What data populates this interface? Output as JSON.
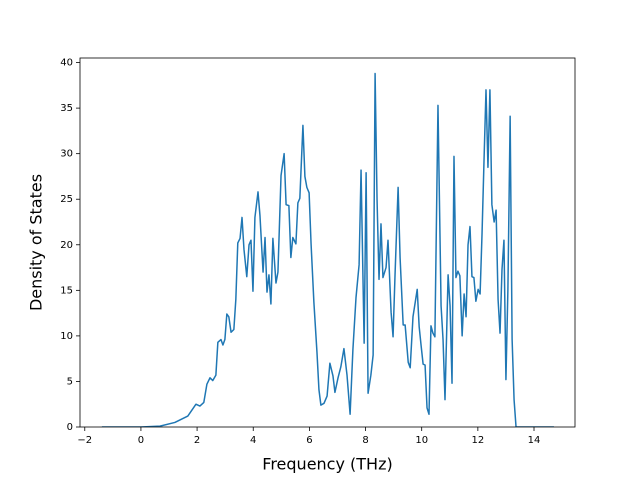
{
  "chart_data": {
    "type": "line",
    "xlabel": "Frequency (THz)",
    "ylabel": "Density of States",
    "color": "#1f77b4",
    "x": [
      -1.39,
      0,
      0.68,
      1.21,
      1.67,
      1.96,
      2.1,
      2.24,
      2.35,
      2.46,
      2.56,
      2.67,
      2.74,
      2.85,
      2.92,
      2.99,
      3.06,
      3.13,
      3.21,
      3.31,
      3.38,
      3.45,
      3.53,
      3.6,
      3.67,
      3.77,
      3.85,
      3.92,
      3.99,
      4.06,
      4.17,
      4.24,
      4.35,
      4.42,
      4.49,
      4.56,
      4.63,
      4.7,
      4.81,
      4.88,
      4.99,
      5.1,
      5.17,
      5.27,
      5.34,
      5.41,
      5.52,
      5.59,
      5.66,
      5.77,
      5.84,
      5.91,
      5.99,
      6.06,
      6.16,
      6.27,
      6.34,
      6.41,
      6.52,
      6.63,
      6.73,
      6.84,
      6.91,
      7.02,
      7.12,
      7.23,
      7.34,
      7.45,
      7.55,
      7.66,
      7.77,
      7.84,
      7.95,
      8.02,
      8.09,
      8.19,
      8.27,
      8.34,
      8.41,
      8.48,
      8.55,
      8.62,
      8.73,
      8.8,
      8.91,
      8.98,
      9.05,
      9.16,
      9.23,
      9.34,
      9.41,
      9.52,
      9.59,
      9.69,
      9.84,
      9.91,
      9.98,
      10.05,
      10.12,
      10.19,
      10.26,
      10.33,
      10.4,
      10.47,
      10.58,
      10.69,
      10.76,
      10.83,
      10.94,
      11.01,
      11.08,
      11.15,
      11.22,
      11.29,
      11.36,
      11.44,
      11.51,
      11.58,
      11.65,
      11.72,
      11.79,
      11.86,
      11.93,
      12.01,
      12.08,
      12.15,
      12.22,
      12.29,
      12.36,
      12.43,
      12.5,
      12.58,
      12.65,
      12.72,
      12.79,
      12.86,
      12.93,
      13.0,
      13.07,
      13.15,
      13.22,
      13.29,
      13.36,
      14.71
    ],
    "values": [
      0,
      0,
      0.1,
      0.5,
      1.2,
      2.5,
      2.3,
      2.7,
      4.7,
      5.4,
      5.1,
      5.7,
      9.3,
      9.6,
      9.0,
      9.6,
      12.4,
      12.1,
      10.4,
      10.7,
      14.0,
      20.2,
      20.7,
      23.0,
      19.5,
      16.5,
      20.0,
      20.5,
      14.9,
      23.0,
      25.8,
      23.2,
      17.0,
      20.8,
      14.8,
      16.7,
      13.5,
      20.7,
      15.8,
      17.0,
      27.6,
      30.0,
      24.4,
      24.3,
      18.6,
      20.8,
      20.1,
      24.6,
      25.1,
      33.1,
      27.5,
      26.3,
      25.7,
      20.1,
      13.7,
      8.2,
      4.1,
      2.4,
      2.6,
      3.4,
      7.0,
      5.6,
      3.8,
      5.4,
      6.6,
      8.6,
      5.7,
      1.4,
      8.5,
      14.2,
      17.8,
      28.2,
      9.2,
      27.9,
      3.7,
      5.7,
      7.9,
      38.8,
      24.9,
      16.2,
      22.3,
      16.4,
      17.5,
      20.5,
      12.6,
      9.9,
      16.7,
      26.3,
      18.6,
      11.2,
      11.2,
      7.1,
      6.5,
      12.1,
      15.1,
      11.0,
      8.9,
      6.9,
      6.8,
      2.1,
      1.4,
      11.1,
      10.3,
      9.9,
      35.3,
      13.3,
      9.6,
      3.0,
      16.7,
      13.3,
      4.8,
      29.7,
      16.4,
      17.1,
      16.6,
      10.0,
      14.6,
      12.1,
      20.0,
      22.0,
      16.5,
      16.4,
      13.8,
      15.1,
      14.6,
      21.3,
      29.3,
      37.0,
      28.5,
      37.0,
      24.4,
      22.5,
      23.8,
      14.0,
      10.3,
      17.3,
      20.5,
      5.2,
      15.1,
      34.1,
      9.6,
      3.0,
      0,
      0
    ],
    "xlim": [
      -2.17,
      15.46
    ],
    "ylim": [
      0,
      40.5
    ],
    "xticks": [
      {
        "value": -2,
        "label": "−2"
      },
      0,
      2,
      4,
      6,
      8,
      10,
      12,
      14
    ],
    "yticks": [
      0,
      5,
      10,
      15,
      20,
      25,
      30,
      35,
      40
    ]
  }
}
